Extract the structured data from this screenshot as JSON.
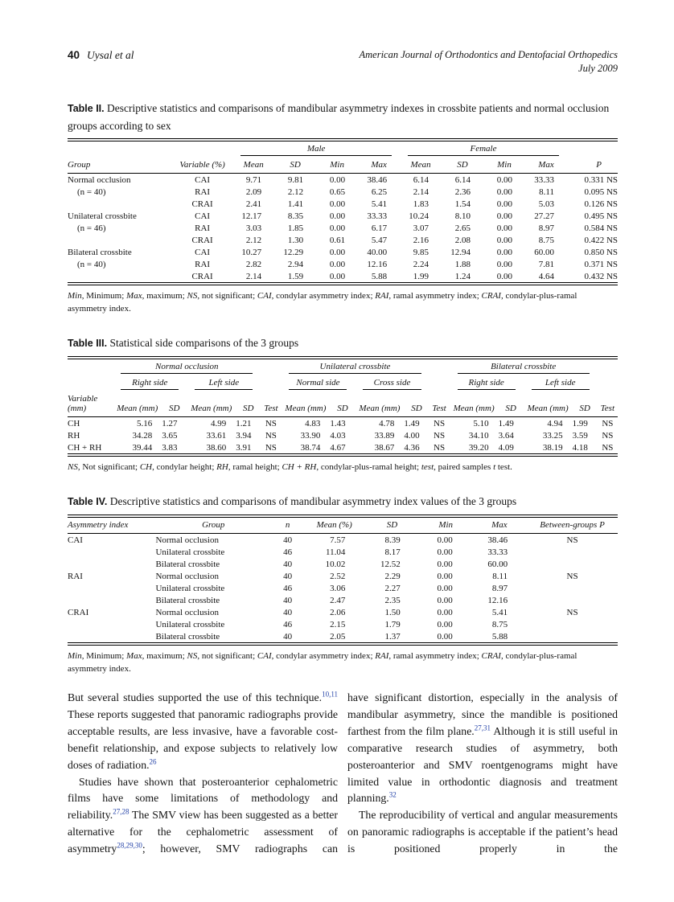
{
  "colors": {
    "link_blue": "#2442a8",
    "ink": "#141414",
    "rule": "#000000"
  },
  "page_header": {
    "page_number": "40",
    "authors": "Uysal et al",
    "journal_line1": "American Journal of Orthodontics and Dentofacial Orthopedics",
    "journal_line2": "July 2009"
  },
  "table2": {
    "label": "Table II.",
    "caption": "Descriptive statistics and comparisons of mandibular asymmetry indexes in crossbite patients and normal occlusion groups according to sex",
    "spanners": [
      "Male",
      "Female"
    ],
    "columns": [
      "Group",
      "Variable (%)",
      "Mean",
      "SD",
      "Min",
      "Max",
      "Mean",
      "SD",
      "Min",
      "Max",
      "P"
    ],
    "rows": [
      [
        "Normal occlusion",
        "CAI",
        "9.71",
        "9.81",
        "0.00",
        "38.46",
        "6.14",
        "6.14",
        "0.00",
        "33.33",
        "0.331 NS"
      ],
      [
        "(n = 40)",
        "RAI",
        "2.09",
        "2.12",
        "0.65",
        "6.25",
        "2.14",
        "2.36",
        "0.00",
        "8.11",
        "0.095 NS"
      ],
      [
        "",
        "CRAI",
        "2.41",
        "1.41",
        "0.00",
        "5.41",
        "1.83",
        "1.54",
        "0.00",
        "5.03",
        "0.126 NS"
      ],
      [
        "Unilateral crossbite",
        "CAI",
        "12.17",
        "8.35",
        "0.00",
        "33.33",
        "10.24",
        "8.10",
        "0.00",
        "27.27",
        "0.495 NS"
      ],
      [
        "(n = 46)",
        "RAI",
        "3.03",
        "1.85",
        "0.00",
        "6.17",
        "3.07",
        "2.65",
        "0.00",
        "8.97",
        "0.584 NS"
      ],
      [
        "",
        "CRAI",
        "2.12",
        "1.30",
        "0.61",
        "5.47",
        "2.16",
        "2.08",
        "0.00",
        "8.75",
        "0.422 NS"
      ],
      [
        "Bilateral crossbite",
        "CAI",
        "10.27",
        "12.29",
        "0.00",
        "40.00",
        "9.85",
        "12.94",
        "0.00",
        "60.00",
        "0.850 NS"
      ],
      [
        "(n = 40)",
        "RAI",
        "2.82",
        "2.94",
        "0.00",
        "12.16",
        "2.24",
        "1.88",
        "0.00",
        "7.81",
        "0.371 NS"
      ],
      [
        "",
        "CRAI",
        "2.14",
        "1.59",
        "0.00",
        "5.88",
        "1.99",
        "1.24",
        "0.00",
        "4.64",
        "0.432 NS"
      ]
    ],
    "footnote": [
      {
        "i": "Min"
      },
      {
        "t": ", Minimum; "
      },
      {
        "i": "Max"
      },
      {
        "t": ", maximum; "
      },
      {
        "i": "NS"
      },
      {
        "t": ", not significant; "
      },
      {
        "i": "CAI"
      },
      {
        "t": ", condylar asymmetry index; "
      },
      {
        "i": "RAI"
      },
      {
        "t": ", ramal asymmetry index; "
      },
      {
        "i": "CRAI"
      },
      {
        "t": ", condylar-plus-ramal asymmetry index."
      }
    ]
  },
  "table3": {
    "label": "Table III.",
    "caption": "Statistical side comparisons of the 3 groups",
    "group_spanners": [
      "Normal occlusion",
      "Unilateral crossbite",
      "Bilateral crossbite"
    ],
    "side_spanners": [
      "Right side",
      "Left side",
      "Normal side",
      "Cross side",
      "Right side",
      "Left side"
    ],
    "columns": [
      "Variable (mm)",
      "Mean (mm)",
      "SD",
      "Mean (mm)",
      "SD",
      "Test",
      "Mean (mm)",
      "SD",
      "Mean (mm)",
      "SD",
      "Test",
      "Mean (mm)",
      "SD",
      "Mean (mm)",
      "SD",
      "Test"
    ],
    "rows": [
      [
        "CH",
        "5.16",
        "1.27",
        "4.99",
        "1.21",
        "NS",
        "4.83",
        "1.43",
        "4.78",
        "1.49",
        "NS",
        "5.10",
        "1.49",
        "4.94",
        "1.99",
        "NS"
      ],
      [
        "RH",
        "34.28",
        "3.65",
        "33.61",
        "3.94",
        "NS",
        "33.90",
        "4.03",
        "33.89",
        "4.00",
        "NS",
        "34.10",
        "3.64",
        "33.25",
        "3.59",
        "NS"
      ],
      [
        "CH + RH",
        "39.44",
        "3.83",
        "38.60",
        "3.91",
        "NS",
        "38.74",
        "4.67",
        "38.67",
        "4.36",
        "NS",
        "39.20",
        "4.09",
        "38.19",
        "4.18",
        "NS"
      ]
    ],
    "footnote": [
      {
        "i": "NS"
      },
      {
        "t": ", Not significant; "
      },
      {
        "i": "CH"
      },
      {
        "t": ", condylar height; "
      },
      {
        "i": "RH"
      },
      {
        "t": ", ramal height; "
      },
      {
        "i": "CH + RH"
      },
      {
        "t": ", condylar-plus-ramal height; "
      },
      {
        "i": "test"
      },
      {
        "t": ", paired samples "
      },
      {
        "i": "t"
      },
      {
        "t": " test."
      }
    ]
  },
  "table4": {
    "label": "Table IV.",
    "caption": "Descriptive statistics and comparisons of mandibular asymmetry index values of the 3 groups",
    "columns": [
      "Asymmetry index",
      "Group",
      "n",
      "Mean (%)",
      "SD",
      "Min",
      "Max",
      "Between-groups P"
    ],
    "rows": [
      [
        "CAI",
        "Normal occlusion",
        "40",
        "7.57",
        "8.39",
        "0.00",
        "38.46",
        "NS"
      ],
      [
        "",
        "Unilateral crossbite",
        "46",
        "11.04",
        "8.17",
        "0.00",
        "33.33",
        ""
      ],
      [
        "",
        "Bilateral crossbite",
        "40",
        "10.02",
        "12.52",
        "0.00",
        "60.00",
        ""
      ],
      [
        "RAI",
        "Normal occlusion",
        "40",
        "2.52",
        "2.29",
        "0.00",
        "8.11",
        "NS"
      ],
      [
        "",
        "Unilateral crossbite",
        "46",
        "3.06",
        "2.27",
        "0.00",
        "8.97",
        ""
      ],
      [
        "",
        "Bilateral crossbite",
        "40",
        "2.47",
        "2.35",
        "0.00",
        "12.16",
        ""
      ],
      [
        "CRAI",
        "Normal occlusion",
        "40",
        "2.06",
        "1.50",
        "0.00",
        "5.41",
        "NS"
      ],
      [
        "",
        "Unilateral crossbite",
        "46",
        "2.15",
        "1.79",
        "0.00",
        "8.75",
        ""
      ],
      [
        "",
        "Bilateral crossbite",
        "40",
        "2.05",
        "1.37",
        "0.00",
        "5.88",
        ""
      ]
    ],
    "footnote": [
      {
        "i": "Min"
      },
      {
        "t": ", Minimum; "
      },
      {
        "i": "Max"
      },
      {
        "t": ", maximum; "
      },
      {
        "i": "NS"
      },
      {
        "t": ", not significant; "
      },
      {
        "i": "CAI"
      },
      {
        "t": ", condylar asymmetry index; "
      },
      {
        "i": "RAI"
      },
      {
        "t": ", ramal asymmetry index; "
      },
      {
        "i": "CRAI"
      },
      {
        "t": ", condylar-plus-ramal asymmetry index."
      }
    ]
  },
  "body": {
    "left": [
      [
        {
          "t": "But several studies supported the use of this technique."
        },
        {
          "s": "10,11"
        },
        {
          "t": " These reports suggested that panoramic radiographs provide acceptable results, are less invasive, have a favorable cost-benefit relationship, and expose subjects to relatively low doses of radiation."
        },
        {
          "s": "26"
        }
      ],
      [
        {
          "t": "Studies have shown that posteroanterior cephalometric films have some limitations of methodology and reliability."
        },
        {
          "s": "27,28"
        },
        {
          "t": " The SMV view has been suggested as a better alternative for the cephalometric assessment of asymmetry"
        },
        {
          "s": "28,29,30"
        },
        {
          "t": "; however, SMV radiographs can"
        }
      ]
    ],
    "right": [
      [
        {
          "t": "have significant distortion, especially in the analysis of mandibular asymmetry, since the mandible is positioned farthest from the film plane."
        },
        {
          "s": "27,31"
        },
        {
          "t": " Although it is still useful in comparative research studies of asymmetry, both posteroanterior and SMV roentgenograms might have limited value in orthodontic diagnosis and treatment planning."
        },
        {
          "s": "32"
        }
      ],
      [
        {
          "t": "The reproducibility of vertical and angular measurements on panoramic radiographs is acceptable if the patient’s head is positioned properly in the"
        }
      ]
    ]
  }
}
